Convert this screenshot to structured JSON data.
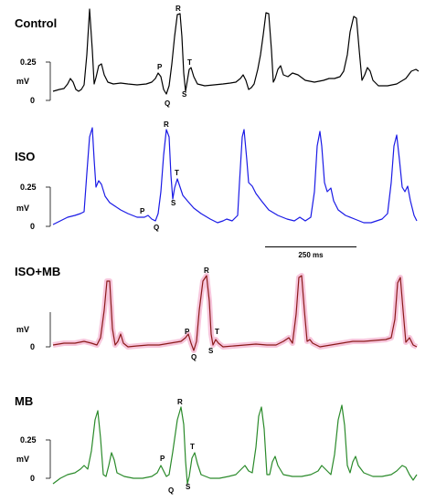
{
  "panels": [
    {
      "title": "Control",
      "color": "#000000",
      "glow": false,
      "y_axis": {
        "label": "mV",
        "ticks": [
          "0.25",
          "0"
        ]
      },
      "wave_labels": [
        "P",
        "Q",
        "R",
        "S",
        "T"
      ]
    },
    {
      "title": "ISO",
      "color": "#1a1ae6",
      "glow": false,
      "y_axis": {
        "label": "mV",
        "ticks": [
          "0.25",
          "0"
        ]
      },
      "wave_labels": [
        "P",
        "Q",
        "R",
        "S",
        "T"
      ]
    },
    {
      "title": "ISO+MB",
      "color": "#8b1a1a",
      "glow": true,
      "glow_color": "#f5b8d3",
      "y_axis": {
        "label": "mV",
        "ticks": [
          "0"
        ]
      },
      "wave_labels": [
        "P",
        "Q",
        "R",
        "S",
        "T"
      ]
    },
    {
      "title": "MB",
      "color": "#2a8a2a",
      "glow": false,
      "y_axis": {
        "label": "mV",
        "ticks": [
          "0.25",
          "0"
        ]
      },
      "wave_labels": [
        "P",
        "Q",
        "R",
        "S",
        "T"
      ]
    }
  ],
  "scale_bar": {
    "label": "250 ms"
  }
}
